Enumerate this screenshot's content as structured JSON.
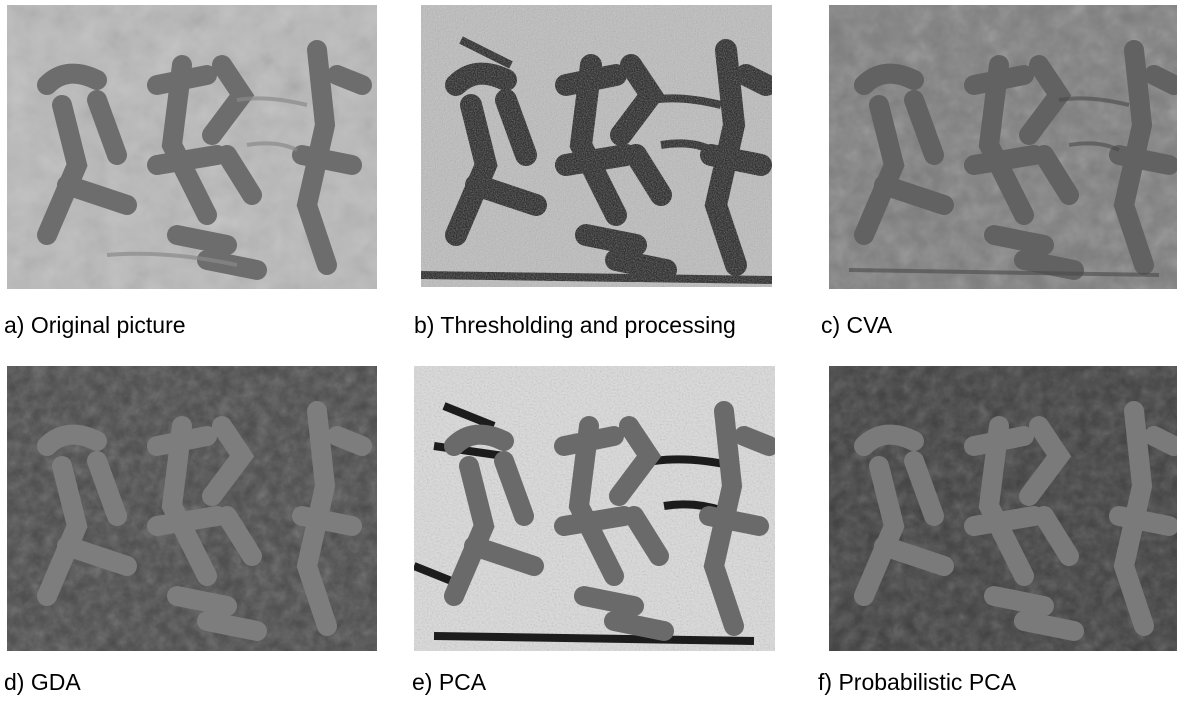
{
  "panels": [
    {
      "caption": "a) Original picture",
      "style": "original"
    },
    {
      "caption": "b) Thresholding and processing",
      "style": "threshold"
    },
    {
      "caption": "c) CVA",
      "style": "cva"
    },
    {
      "caption": "d) GDA",
      "style": "gda"
    },
    {
      "caption": "e) PCA",
      "style": "pca"
    },
    {
      "caption": "f) Probabilistic PCA",
      "style": "ppca"
    }
  ]
}
